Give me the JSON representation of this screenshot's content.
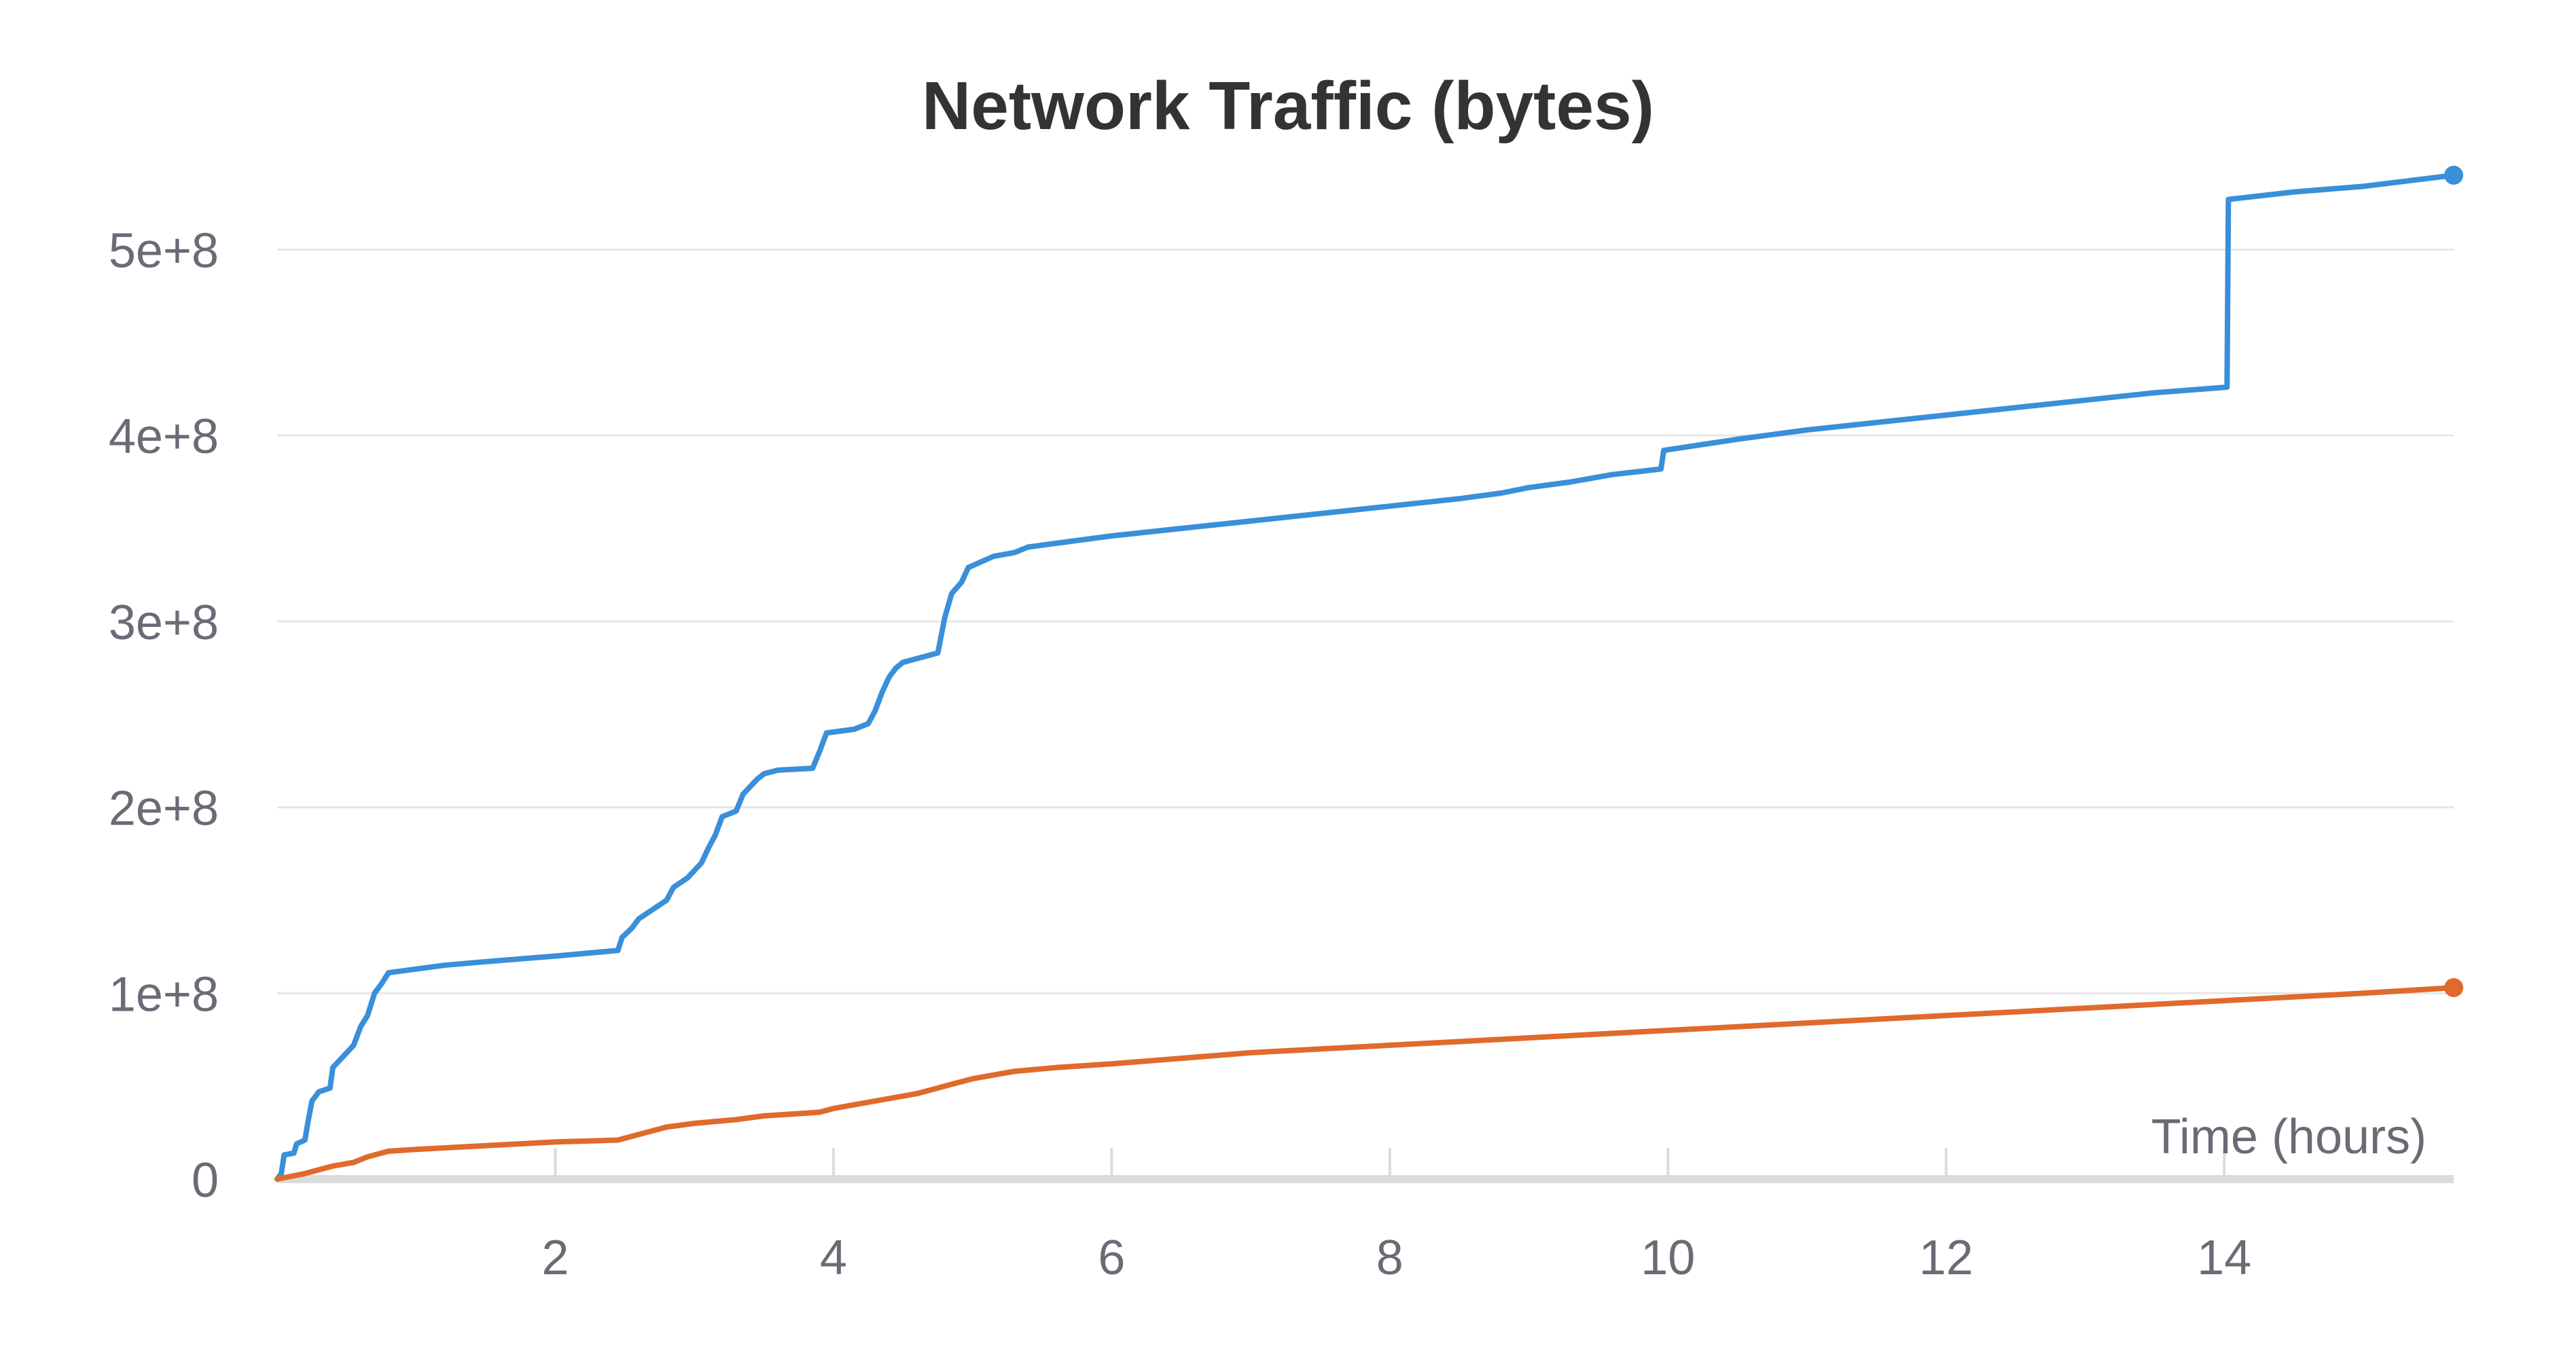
{
  "chart_data": {
    "type": "line",
    "title": "Network Traffic (bytes)",
    "xlabel": "Time (hours)",
    "ylabel": "",
    "xlim": [
      0,
      15.65
    ],
    "ylim": [
      0,
      540000000
    ],
    "x_ticks": [
      2,
      4,
      6,
      8,
      10,
      12,
      14
    ],
    "x_tick_labels": [
      "2",
      "4",
      "6",
      "8",
      "10",
      "12",
      "14"
    ],
    "y_ticks": [
      0,
      100000000,
      200000000,
      300000000,
      400000000,
      500000000
    ],
    "y_tick_labels": [
      "0",
      "1e+8",
      "2e+8",
      "3e+8",
      "4e+8",
      "5e+8"
    ],
    "grid": true,
    "legend": "none",
    "series": [
      {
        "color": "#3a8fd9",
        "points": [
          [
            0.0,
            0
          ],
          [
            0.03,
            3000000
          ],
          [
            0.05,
            13000000
          ],
          [
            0.12,
            14000000
          ],
          [
            0.14,
            19000000
          ],
          [
            0.2,
            21000000
          ],
          [
            0.22,
            30000000
          ],
          [
            0.25,
            42000000
          ],
          [
            0.3,
            47000000
          ],
          [
            0.38,
            49000000
          ],
          [
            0.4,
            60000000
          ],
          [
            0.45,
            64000000
          ],
          [
            0.5,
            68000000
          ],
          [
            0.55,
            72000000
          ],
          [
            0.6,
            82000000
          ],
          [
            0.65,
            88000000
          ],
          [
            0.7,
            100000000
          ],
          [
            0.75,
            105000000
          ],
          [
            0.8,
            111000000
          ],
          [
            1.0,
            113000000
          ],
          [
            1.2,
            115000000
          ],
          [
            1.5,
            117000000
          ],
          [
            2.0,
            120000000
          ],
          [
            2.45,
            123000000
          ],
          [
            2.48,
            130000000
          ],
          [
            2.55,
            135000000
          ],
          [
            2.6,
            140000000
          ],
          [
            2.7,
            145000000
          ],
          [
            2.8,
            150000000
          ],
          [
            2.85,
            157000000
          ],
          [
            2.95,
            162000000
          ],
          [
            3.05,
            170000000
          ],
          [
            3.1,
            178000000
          ],
          [
            3.15,
            185000000
          ],
          [
            3.2,
            195000000
          ],
          [
            3.3,
            198000000
          ],
          [
            3.35,
            207000000
          ],
          [
            3.45,
            215000000
          ],
          [
            3.5,
            218000000
          ],
          [
            3.6,
            220000000
          ],
          [
            3.85,
            221000000
          ],
          [
            3.9,
            230000000
          ],
          [
            3.95,
            240000000
          ],
          [
            4.15,
            242000000
          ],
          [
            4.25,
            245000000
          ],
          [
            4.3,
            252000000
          ],
          [
            4.35,
            262000000
          ],
          [
            4.4,
            270000000
          ],
          [
            4.45,
            275000000
          ],
          [
            4.5,
            278000000
          ],
          [
            4.75,
            283000000
          ],
          [
            4.8,
            302000000
          ],
          [
            4.85,
            315000000
          ],
          [
            4.92,
            321000000
          ],
          [
            4.97,
            329000000
          ],
          [
            5.15,
            335000000
          ],
          [
            5.3,
            337000000
          ],
          [
            5.4,
            340000000
          ],
          [
            5.6,
            342000000
          ],
          [
            6.0,
            346000000
          ],
          [
            6.5,
            350000000
          ],
          [
            7.0,
            354000000
          ],
          [
            7.5,
            358000000
          ],
          [
            8.0,
            362000000
          ],
          [
            8.5,
            366000000
          ],
          [
            8.8,
            369000000
          ],
          [
            9.0,
            372000000
          ],
          [
            9.3,
            375000000
          ],
          [
            9.6,
            379000000
          ],
          [
            9.95,
            382000000
          ],
          [
            9.97,
            392000000
          ],
          [
            10.5,
            398000000
          ],
          [
            11.0,
            403000000
          ],
          [
            11.5,
            407000000
          ],
          [
            12.0,
            411000000
          ],
          [
            12.5,
            415000000
          ],
          [
            13.0,
            419000000
          ],
          [
            13.5,
            423000000
          ],
          [
            14.02,
            426000000
          ],
          [
            14.03,
            527000000
          ],
          [
            14.5,
            531000000
          ],
          [
            15.0,
            534000000
          ],
          [
            15.65,
            540000000
          ]
        ]
      },
      {
        "color": "#e06a2c",
        "points": [
          [
            0.0,
            0
          ],
          [
            0.2,
            3000000
          ],
          [
            0.3,
            5000000
          ],
          [
            0.4,
            7000000
          ],
          [
            0.55,
            9000000
          ],
          [
            0.65,
            12000000
          ],
          [
            0.8,
            15000000
          ],
          [
            1.0,
            16000000
          ],
          [
            1.5,
            18000000
          ],
          [
            2.0,
            20000000
          ],
          [
            2.45,
            21000000
          ],
          [
            2.6,
            24000000
          ],
          [
            2.8,
            28000000
          ],
          [
            3.0,
            30000000
          ],
          [
            3.3,
            32000000
          ],
          [
            3.5,
            34000000
          ],
          [
            3.9,
            36000000
          ],
          [
            4.0,
            38000000
          ],
          [
            4.3,
            42000000
          ],
          [
            4.6,
            46000000
          ],
          [
            4.8,
            50000000
          ],
          [
            5.0,
            54000000
          ],
          [
            5.3,
            58000000
          ],
          [
            5.6,
            60000000
          ],
          [
            6.0,
            62000000
          ],
          [
            6.5,
            65000000
          ],
          [
            7.0,
            68000000
          ],
          [
            7.5,
            70000000
          ],
          [
            8.0,
            72000000
          ],
          [
            8.5,
            74000000
          ],
          [
            9.0,
            76000000
          ],
          [
            9.5,
            78000000
          ],
          [
            10.0,
            80000000
          ],
          [
            10.5,
            82000000
          ],
          [
            11.0,
            84000000
          ],
          [
            11.5,
            86000000
          ],
          [
            12.0,
            88000000
          ],
          [
            12.5,
            90000000
          ],
          [
            13.0,
            92000000
          ],
          [
            13.5,
            94000000
          ],
          [
            14.0,
            96000000
          ],
          [
            14.5,
            98000000
          ],
          [
            15.0,
            100000000
          ],
          [
            15.65,
            103000000
          ]
        ]
      }
    ]
  }
}
